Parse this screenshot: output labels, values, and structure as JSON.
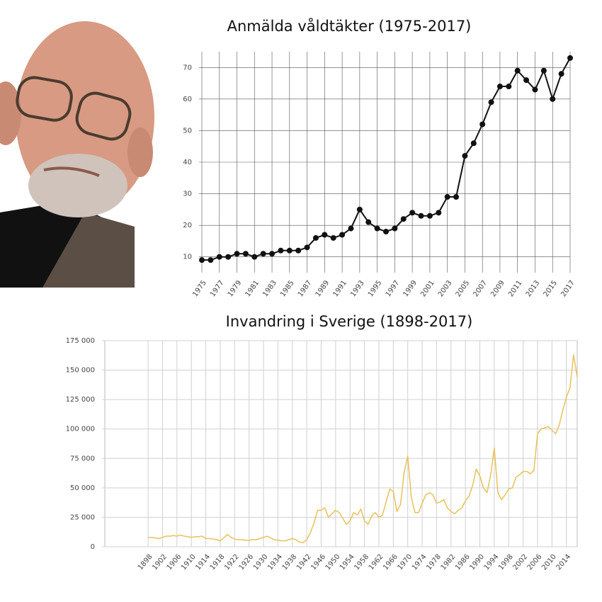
{
  "chart_data": [
    {
      "type": "line",
      "title": "Anmälda våldtäkter (1975-2017)",
      "x": [
        1975,
        1976,
        1977,
        1978,
        1979,
        1980,
        1981,
        1982,
        1983,
        1984,
        1985,
        1986,
        1987,
        1988,
        1989,
        1990,
        1991,
        1992,
        1993,
        1994,
        1995,
        1996,
        1997,
        1998,
        1999,
        2000,
        2001,
        2002,
        2003,
        2004,
        2005,
        2006,
        2007,
        2008,
        2009,
        2010,
        2011,
        2012,
        2013,
        2014,
        2015,
        2016,
        2017
      ],
      "values": [
        9,
        9,
        10,
        10,
        11,
        11,
        10,
        11,
        11,
        12,
        12,
        12,
        13,
        16,
        17,
        16,
        17,
        19,
        25,
        21,
        19,
        18,
        19,
        22,
        24,
        23,
        23,
        24,
        29,
        29,
        42,
        46,
        52,
        59,
        64,
        64,
        69,
        66,
        63,
        69,
        60,
        68,
        73
      ],
      "color": "#111111",
      "markers": true,
      "grid": true,
      "xlim": [
        1975,
        2017
      ],
      "xticks": [
        1975,
        1977,
        1979,
        1981,
        1983,
        1985,
        1987,
        1989,
        1991,
        1993,
        1995,
        1997,
        1999,
        2001,
        2003,
        2005,
        2007,
        2009,
        2011,
        2013,
        2015,
        2017
      ],
      "ylim": [
        5,
        75
      ],
      "yticks": [
        10,
        20,
        30,
        40,
        50,
        60,
        70
      ]
    },
    {
      "type": "line",
      "title": "Invandring i Sverige (1898-2017)",
      "x": [
        1898,
        1899,
        1900,
        1901,
        1902,
        1903,
        1904,
        1905,
        1906,
        1907,
        1908,
        1909,
        1910,
        1911,
        1912,
        1913,
        1914,
        1915,
        1916,
        1917,
        1918,
        1919,
        1920,
        1921,
        1922,
        1923,
        1924,
        1925,
        1926,
        1927,
        1928,
        1929,
        1930,
        1931,
        1932,
        1933,
        1934,
        1935,
        1936,
        1937,
        1938,
        1939,
        1940,
        1941,
        1942,
        1943,
        1944,
        1945,
        1946,
        1947,
        1948,
        1949,
        1950,
        1951,
        1952,
        1953,
        1954,
        1955,
        1956,
        1957,
        1958,
        1959,
        1960,
        1961,
        1962,
        1963,
        1964,
        1965,
        1966,
        1967,
        1968,
        1969,
        1970,
        1971,
        1972,
        1973,
        1974,
        1975,
        1976,
        1977,
        1978,
        1979,
        1980,
        1981,
        1982,
        1983,
        1984,
        1985,
        1986,
        1987,
        1988,
        1989,
        1990,
        1991,
        1992,
        1993,
        1994,
        1995,
        1996,
        1997,
        1998,
        1999,
        2000,
        2001,
        2002,
        2003,
        2004,
        2005,
        2006,
        2007,
        2008,
        2009,
        2010,
        2011,
        2012,
        2013,
        2014,
        2015,
        2016,
        2017
      ],
      "values": [
        8000,
        8000,
        7500,
        7000,
        8000,
        9000,
        9000,
        9500,
        9000,
        10000,
        9000,
        8500,
        8000,
        8500,
        8500,
        9000,
        7000,
        7000,
        6500,
        6000,
        5000,
        7500,
        10500,
        8000,
        6500,
        6000,
        6000,
        5500,
        5500,
        6000,
        6000,
        7000,
        8000,
        9000,
        7500,
        6000,
        5500,
        5000,
        5000,
        6000,
        7000,
        6000,
        4000,
        3500,
        6000,
        12000,
        20000,
        31000,
        31000,
        33000,
        25000,
        28000,
        31000,
        29000,
        24000,
        19000,
        22000,
        29000,
        27000,
        32000,
        22000,
        19000,
        26000,
        29000,
        25000,
        27000,
        38000,
        49000,
        47000,
        30000,
        36000,
        63000,
        77000,
        42000,
        29000,
        29000,
        37000,
        44000,
        46000,
        44000,
        37000,
        38000,
        40000,
        33000,
        30000,
        28000,
        31000,
        33000,
        39000,
        43000,
        52000,
        66000,
        60000,
        50000,
        46000,
        61000,
        84000,
        46000,
        40000,
        44000,
        49000,
        50000,
        59000,
        61000,
        64000,
        64000,
        62000,
        65000,
        96000,
        100000,
        101000,
        102000,
        99000,
        96000,
        103000,
        116000,
        127000,
        135000,
        163000,
        144000
      ],
      "color": "#e8c15a",
      "markers": false,
      "grid": true,
      "xlim": [
        1886,
        2017
      ],
      "xticks": [
        1898,
        1902,
        1906,
        1910,
        1914,
        1918,
        1922,
        1926,
        1930,
        1934,
        1938,
        1942,
        1946,
        1950,
        1954,
        1958,
        1962,
        1966,
        1970,
        1974,
        1978,
        1982,
        1986,
        1990,
        1994,
        1998,
        2002,
        2006,
        2010,
        2014
      ],
      "ylim": [
        0,
        175000
      ],
      "yticks": [
        0,
        {
          "value": 25000,
          "label": "25 000"
        },
        {
          "value": 50000,
          "label": "50 000"
        },
        {
          "value": 75000,
          "label": "75 000"
        },
        {
          "value": 100000,
          "label": "100 000"
        },
        {
          "value": 125000,
          "label": "125 000"
        },
        {
          "value": 150000,
          "label": "150 000"
        },
        {
          "value": 175000,
          "label": "175 000"
        }
      ]
    }
  ]
}
